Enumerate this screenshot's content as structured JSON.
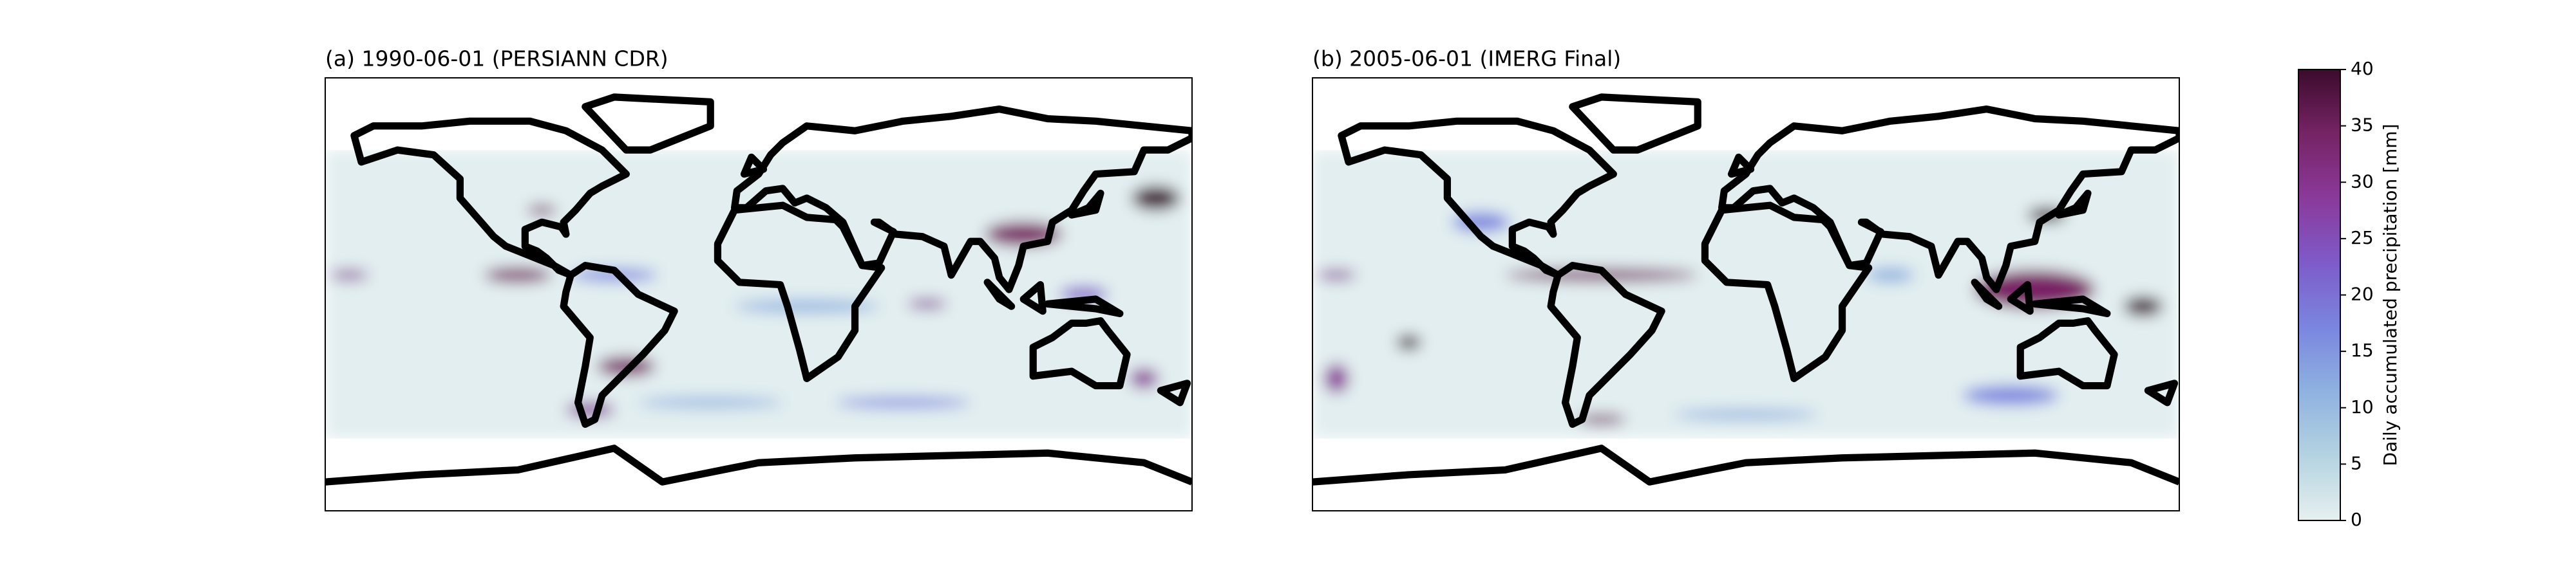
{
  "panels": [
    {
      "title": "(a) 1990-06-01 (PERSIANN CDR)"
    },
    {
      "title": "(b) 2005-06-01 (IMERG Final)"
    }
  ],
  "colorbar": {
    "label": "Daily accumulated precipitation [mm]",
    "lim": [
      0,
      40
    ],
    "ticks": [
      0,
      5,
      10,
      15,
      20,
      25,
      30,
      35,
      40
    ],
    "colors": [
      "#e6f0f0",
      "#b4d3e1",
      "#8fb2e0",
      "#7a86df",
      "#7e5bc9",
      "#8a3a9a",
      "#762465",
      "#3c0b2c"
    ]
  }
}
